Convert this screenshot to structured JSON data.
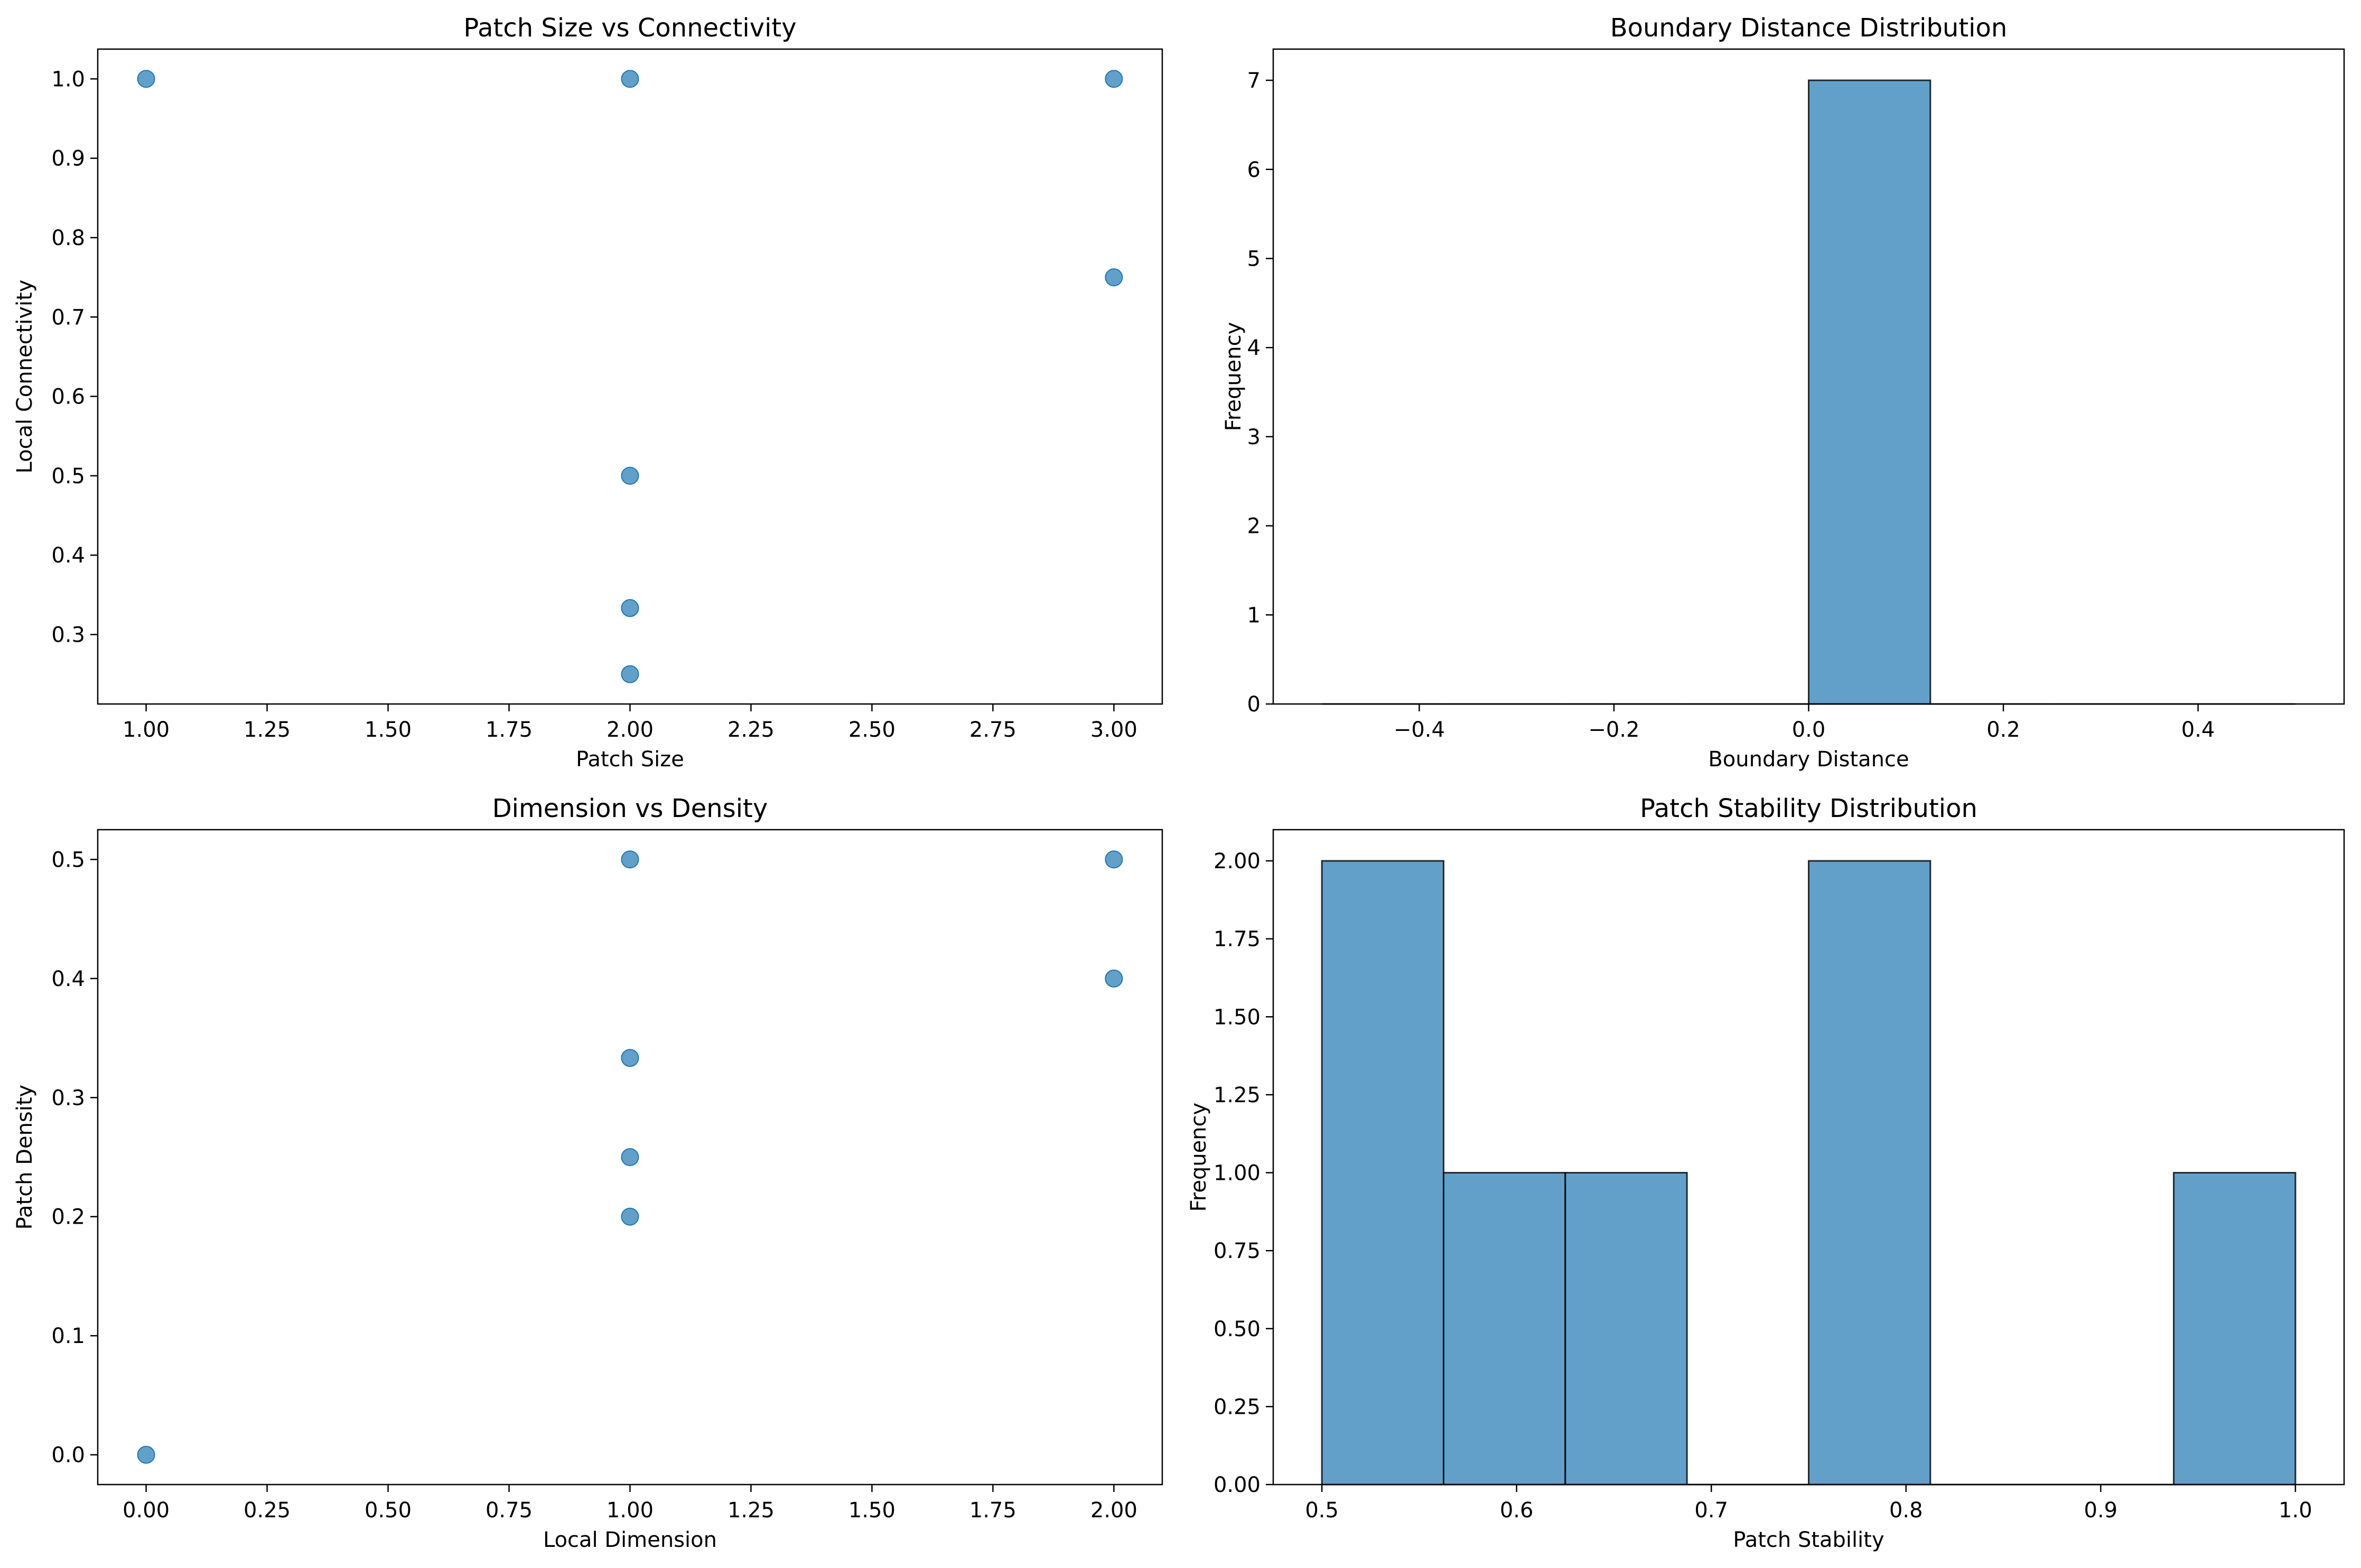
{
  "chart_data": [
    {
      "type": "scatter",
      "title": "Patch Size vs Connectivity",
      "xlabel": "Patch Size",
      "ylabel": "Local Connectivity",
      "xlim": [
        0.9,
        3.1
      ],
      "ylim": [
        0.2125,
        1.0375
      ],
      "xticks": [
        1.0,
        1.25,
        1.5,
        1.75,
        2.0,
        2.25,
        2.5,
        2.75,
        3.0
      ],
      "xtick_labels": [
        "1.00",
        "1.25",
        "1.50",
        "1.75",
        "2.00",
        "2.25",
        "2.50",
        "2.75",
        "3.00"
      ],
      "yticks": [
        0.3,
        0.4,
        0.5,
        0.6,
        0.7,
        0.8,
        0.9,
        1.0
      ],
      "ytick_labels": [
        "0.3",
        "0.4",
        "0.5",
        "0.6",
        "0.7",
        "0.8",
        "0.9",
        "1.0"
      ],
      "points": [
        {
          "x": 1,
          "y": 1.0
        },
        {
          "x": 2,
          "y": 1.0
        },
        {
          "x": 2,
          "y": 0.5
        },
        {
          "x": 2,
          "y": 0.3333
        },
        {
          "x": 2,
          "y": 0.25
        },
        {
          "x": 3,
          "y": 1.0
        },
        {
          "x": 3,
          "y": 0.75
        }
      ],
      "color": "#1f77b4",
      "grid": false
    },
    {
      "type": "bar",
      "subtype": "histogram",
      "title": "Boundary Distance Distribution",
      "xlabel": "Boundary Distance",
      "ylabel": "Frequency",
      "xlim": [
        -0.55,
        0.55
      ],
      "ylim": [
        0,
        7.35
      ],
      "xticks": [
        -0.4,
        -0.2,
        0.0,
        0.2,
        0.4
      ],
      "xtick_labels": [
        "−0.4",
        "−0.2",
        "0.0",
        "0.2",
        "0.4"
      ],
      "yticks": [
        0,
        1,
        2,
        3,
        4,
        5,
        6,
        7
      ],
      "ytick_labels": [
        "0",
        "1",
        "2",
        "3",
        "4",
        "5",
        "6",
        "7"
      ],
      "bin_edges": [
        -0.5,
        -0.375,
        -0.25,
        -0.125,
        0.0,
        0.125,
        0.25,
        0.375,
        0.5
      ],
      "values": [
        0,
        0,
        0,
        0,
        7,
        0,
        0,
        0
      ],
      "color": "#1f77b4",
      "grid": false
    },
    {
      "type": "scatter",
      "title": "Dimension vs Density",
      "xlabel": "Local Dimension",
      "ylabel": "Patch Density",
      "xlim": [
        -0.1,
        2.1
      ],
      "ylim": [
        -0.025,
        0.525
      ],
      "xticks": [
        0.0,
        0.25,
        0.5,
        0.75,
        1.0,
        1.25,
        1.5,
        1.75,
        2.0
      ],
      "xtick_labels": [
        "0.00",
        "0.25",
        "0.50",
        "0.75",
        "1.00",
        "1.25",
        "1.50",
        "1.75",
        "2.00"
      ],
      "yticks": [
        0.0,
        0.1,
        0.2,
        0.3,
        0.4,
        0.5
      ],
      "ytick_labels": [
        "0.0",
        "0.1",
        "0.2",
        "0.3",
        "0.4",
        "0.5"
      ],
      "points": [
        {
          "x": 0,
          "y": 0.0
        },
        {
          "x": 1,
          "y": 0.5
        },
        {
          "x": 1,
          "y": 0.3333
        },
        {
          "x": 1,
          "y": 0.25
        },
        {
          "x": 1,
          "y": 0.2
        },
        {
          "x": 2,
          "y": 0.5
        },
        {
          "x": 2,
          "y": 0.4
        }
      ],
      "color": "#1f77b4",
      "grid": false
    },
    {
      "type": "bar",
      "subtype": "histogram",
      "title": "Patch Stability Distribution",
      "xlabel": "Patch Stability",
      "ylabel": "Frequency",
      "xlim": [
        0.475,
        1.025
      ],
      "ylim": [
        0,
        2.1
      ],
      "xticks": [
        0.5,
        0.6,
        0.7,
        0.8,
        0.9,
        1.0
      ],
      "xtick_labels": [
        "0.5",
        "0.6",
        "0.7",
        "0.8",
        "0.9",
        "1.0"
      ],
      "yticks": [
        0.0,
        0.25,
        0.5,
        0.75,
        1.0,
        1.25,
        1.5,
        1.75,
        2.0
      ],
      "ytick_labels": [
        "0.00",
        "0.25",
        "0.50",
        "0.75",
        "1.00",
        "1.25",
        "1.50",
        "1.75",
        "2.00"
      ],
      "bin_edges": [
        0.5,
        0.5625,
        0.625,
        0.6875,
        0.75,
        0.8125,
        0.875,
        0.9375,
        1.0
      ],
      "values": [
        2,
        1,
        1,
        0,
        2,
        0,
        0,
        1
      ],
      "color": "#1f77b4",
      "grid": false
    }
  ]
}
